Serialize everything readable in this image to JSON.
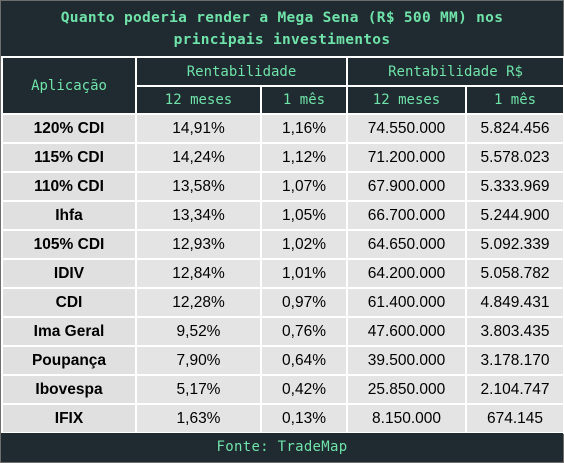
{
  "title_line1": "Quanto poderia render a Mega Sena (R$ 500 MM) nos",
  "title_line2": "principais investimentos",
  "headers": {
    "aplicacao": "Aplicação",
    "rentabilidade": "Rentabilidade",
    "rentabilidade_rs": "Rentabilidade R$",
    "m12": "12 meses",
    "m1": "1 mês"
  },
  "rows": [
    {
      "app": "120% CDI",
      "r12": "14,91%",
      "r1": "1,16%",
      "v12": "74.550.000",
      "v1": "5.824.456"
    },
    {
      "app": "115% CDI",
      "r12": "14,24%",
      "r1": "1,12%",
      "v12": "71.200.000",
      "v1": "5.578.023"
    },
    {
      "app": "110% CDI",
      "r12": "13,58%",
      "r1": "1,07%",
      "v12": "67.900.000",
      "v1": "5.333.969"
    },
    {
      "app": "Ihfa",
      "r12": "13,34%",
      "r1": "1,05%",
      "v12": "66.700.000",
      "v1": "5.244.900"
    },
    {
      "app": "105% CDI",
      "r12": "12,93%",
      "r1": "1,02%",
      "v12": "64.650.000",
      "v1": "5.092.339"
    },
    {
      "app": "IDIV",
      "r12": "12,84%",
      "r1": "1,01%",
      "v12": "64.200.000",
      "v1": "5.058.782"
    },
    {
      "app": "CDI",
      "r12": "12,28%",
      "r1": "0,97%",
      "v12": "61.400.000",
      "v1": "4.849.431"
    },
    {
      "app": "Ima Geral",
      "r12": "9,52%",
      "r1": "0,76%",
      "v12": "47.600.000",
      "v1": "3.803.435"
    },
    {
      "app": "Poupança",
      "r12": "7,90%",
      "r1": "0,64%",
      "v12": "39.500.000",
      "v1": "3.178.170"
    },
    {
      "app": "Ibovespa",
      "r12": "5,17%",
      "r1": "0,42%",
      "v12": "25.850.000",
      "v1": "2.104.747"
    },
    {
      "app": "IFIX",
      "r12": "1,63%",
      "r1": "0,13%",
      "v12": "8.150.000",
      "v1": "674.145"
    }
  ],
  "footer": "Fonte: TradeMap",
  "colors": {
    "header_bg": "#1f2b30",
    "header_text": "#6fe3a9",
    "cell_bg": "#e4e4e4"
  }
}
